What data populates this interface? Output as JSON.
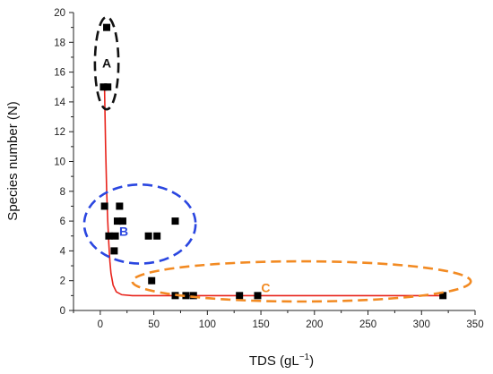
{
  "chart_data": {
    "type": "scatter",
    "title": "",
    "xlabel": "TDS (gL",
    "xlabel_superscript": "−1",
    "xlabel_suffix": ")",
    "ylabel": "Species number (N)",
    "xlim": [
      -25,
      350
    ],
    "ylim": [
      0,
      20
    ],
    "x_ticks": [
      0,
      50,
      100,
      150,
      200,
      250,
      300,
      350
    ],
    "y_ticks": [
      0,
      2,
      4,
      6,
      8,
      10,
      12,
      14,
      16,
      18,
      20
    ],
    "grid": false,
    "points": [
      {
        "x": 6,
        "y": 19
      },
      {
        "x": 3,
        "y": 15
      },
      {
        "x": 7,
        "y": 15
      },
      {
        "x": 4,
        "y": 7
      },
      {
        "x": 18,
        "y": 7
      },
      {
        "x": 16,
        "y": 6
      },
      {
        "x": 21,
        "y": 6
      },
      {
        "x": 70,
        "y": 6
      },
      {
        "x": 8,
        "y": 5
      },
      {
        "x": 14,
        "y": 5
      },
      {
        "x": 45,
        "y": 5
      },
      {
        "x": 53,
        "y": 5
      },
      {
        "x": 13,
        "y": 4
      },
      {
        "x": 48,
        "y": 2
      },
      {
        "x": 70,
        "y": 1
      },
      {
        "x": 80,
        "y": 1
      },
      {
        "x": 87,
        "y": 1
      },
      {
        "x": 130,
        "y": 1
      },
      {
        "x": 147,
        "y": 1
      },
      {
        "x": 320,
        "y": 1
      }
    ],
    "fit_curve": {
      "color": "#e8231b",
      "points": [
        [
          4,
          15
        ],
        [
          5,
          11
        ],
        [
          6,
          8
        ],
        [
          7,
          6
        ],
        [
          8,
          4.5
        ],
        [
          9,
          3.3
        ],
        [
          10,
          2.5
        ],
        [
          12,
          1.7
        ],
        [
          15,
          1.25
        ],
        [
          20,
          1.06
        ],
        [
          30,
          1.0
        ],
        [
          100,
          1.0
        ],
        [
          322,
          1.0
        ]
      ]
    },
    "groups": [
      {
        "label": "A",
        "color": "#111111",
        "cx": 6,
        "cy": 16.6,
        "rx": 11,
        "ry": 3.1
      },
      {
        "label": "B",
        "color": "#2a46e0",
        "cx": 37,
        "cy": 5.8,
        "rx": 52,
        "ry": 2.65
      },
      {
        "label": "C",
        "color": "#f28a22",
        "cx": 188,
        "cy": 1.95,
        "rx": 158,
        "ry": 1.35
      }
    ],
    "marker_color": "#000000"
  }
}
